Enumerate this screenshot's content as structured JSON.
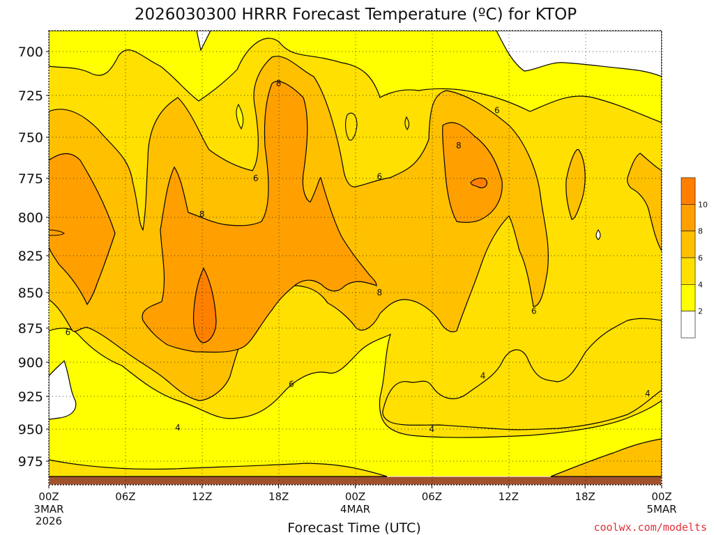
{
  "chart_data": {
    "type": "contour",
    "title": "2026030300 HRRR Forecast Temperature (ºC) for KTOP",
    "xlabel": "Forecast Time (UTC)",
    "ylabel": "",
    "x_ticks": [
      {
        "label": "00Z",
        "sub": [
          "3MAR",
          "2026"
        ]
      },
      {
        "label": "06Z",
        "sub": []
      },
      {
        "label": "12Z",
        "sub": []
      },
      {
        "label": "18Z",
        "sub": []
      },
      {
        "label": "00Z",
        "sub": [
          "4MAR"
        ]
      },
      {
        "label": "06Z",
        "sub": []
      },
      {
        "label": "12Z",
        "sub": []
      },
      {
        "label": "18Z",
        "sub": []
      },
      {
        "label": "00Z",
        "sub": [
          "5MAR"
        ]
      }
    ],
    "x_range_hours": [
      0,
      48
    ],
    "y_ticks": [
      "700",
      "725",
      "750",
      "775",
      "800",
      "825",
      "850",
      "875",
      "900",
      "925",
      "950",
      "975"
    ],
    "y_range_hpa": [
      688,
      985
    ],
    "y_direction": "pressure decreasing upward",
    "contour_levels": [
      2,
      4,
      6,
      8,
      10
    ],
    "colorbar": {
      "tick_labels": [
        "2",
        "4",
        "6",
        "8",
        "10"
      ],
      "bins": [
        {
          "range": "<2",
          "color": "#ffffff"
        },
        {
          "range": "2-4",
          "color": "#ffff00"
        },
        {
          "range": "4-6",
          "color": "#ffe000"
        },
        {
          "range": "6-8",
          "color": "#ffc000"
        },
        {
          "range": "8-10",
          "color": "#ffa000"
        },
        {
          "range": ">10",
          "color": "#ff8000"
        }
      ]
    },
    "contour_labels": [
      {
        "text": "8",
        "hour": 18.0,
        "hpa": 718
      },
      {
        "text": "6",
        "hour": 16.2,
        "hpa": 775
      },
      {
        "text": "8",
        "hour": 12.0,
        "hpa": 798
      },
      {
        "text": "6",
        "hour": 1.5,
        "hpa": 878
      },
      {
        "text": "4",
        "hour": 10.1,
        "hpa": 949
      },
      {
        "text": "6",
        "hour": 19.0,
        "hpa": 916
      },
      {
        "text": "8",
        "hour": 25.9,
        "hpa": 850
      },
      {
        "text": "6",
        "hour": 25.9,
        "hpa": 774
      },
      {
        "text": "6",
        "hour": 35.1,
        "hpa": 734
      },
      {
        "text": "8",
        "hour": 32.1,
        "hpa": 755
      },
      {
        "text": "6",
        "hour": 38.0,
        "hpa": 863
      },
      {
        "text": "4",
        "hour": 30.0,
        "hpa": 950
      },
      {
        "text": "4",
        "hour": 34.0,
        "hpa": 910
      },
      {
        "text": "4",
        "hour": 46.9,
        "hpa": 923
      }
    ],
    "colors": {
      "white": "#ffffff",
      "c2_4": "#ffff00",
      "c4_6": "#ffe000",
      "c6_8": "#ffc000",
      "c8_10": "#ffa000",
      "c10": "#ff8000",
      "ground": "#a0522d"
    }
  },
  "credit": "coolwx.com/modelts"
}
